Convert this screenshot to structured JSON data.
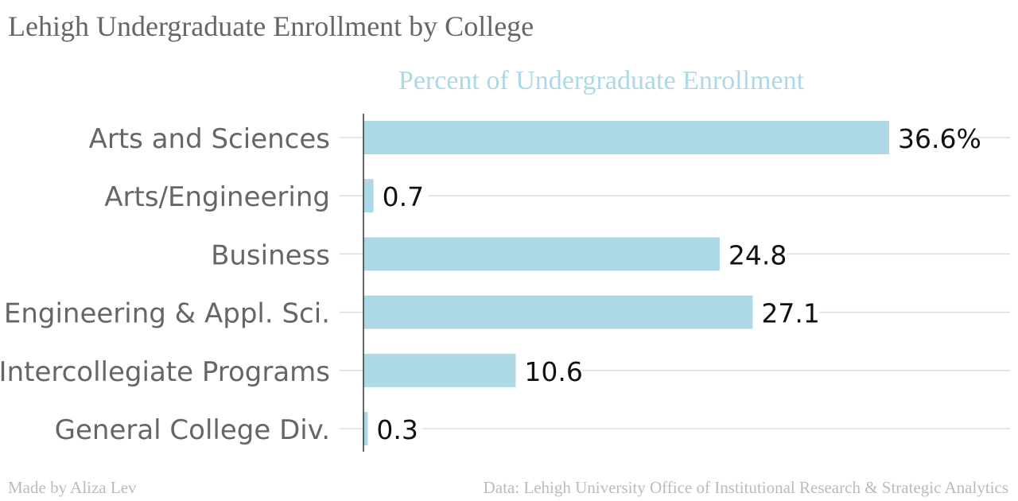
{
  "title": "Lehigh Undergraduate Enrollment by College",
  "credit": "Made by Aliza Lev",
  "source": "Data: Lehigh University Office of Institutional Research & Strategic Analytics",
  "chart_data": {
    "type": "bar",
    "orientation": "horizontal",
    "subtitle": "Percent of Undergraduate Enrollment",
    "categories": [
      "Arts and Sciences",
      "Arts/Engineering",
      "Business",
      "Engineering & Appl. Sci.",
      "Intercollegiate Programs",
      "General College Div."
    ],
    "values": [
      36.6,
      0.7,
      24.8,
      27.1,
      10.6,
      0.3
    ],
    "value_labels": [
      "36.6%",
      "0.7",
      "24.8",
      "27.1",
      "10.6",
      "0.3"
    ],
    "xlim": [
      0,
      40
    ],
    "grid": true,
    "bar_color": "#add8e6",
    "subtitle_color": "#add8e6",
    "grid_color": "#dddddd",
    "axis_color": "#333333"
  }
}
